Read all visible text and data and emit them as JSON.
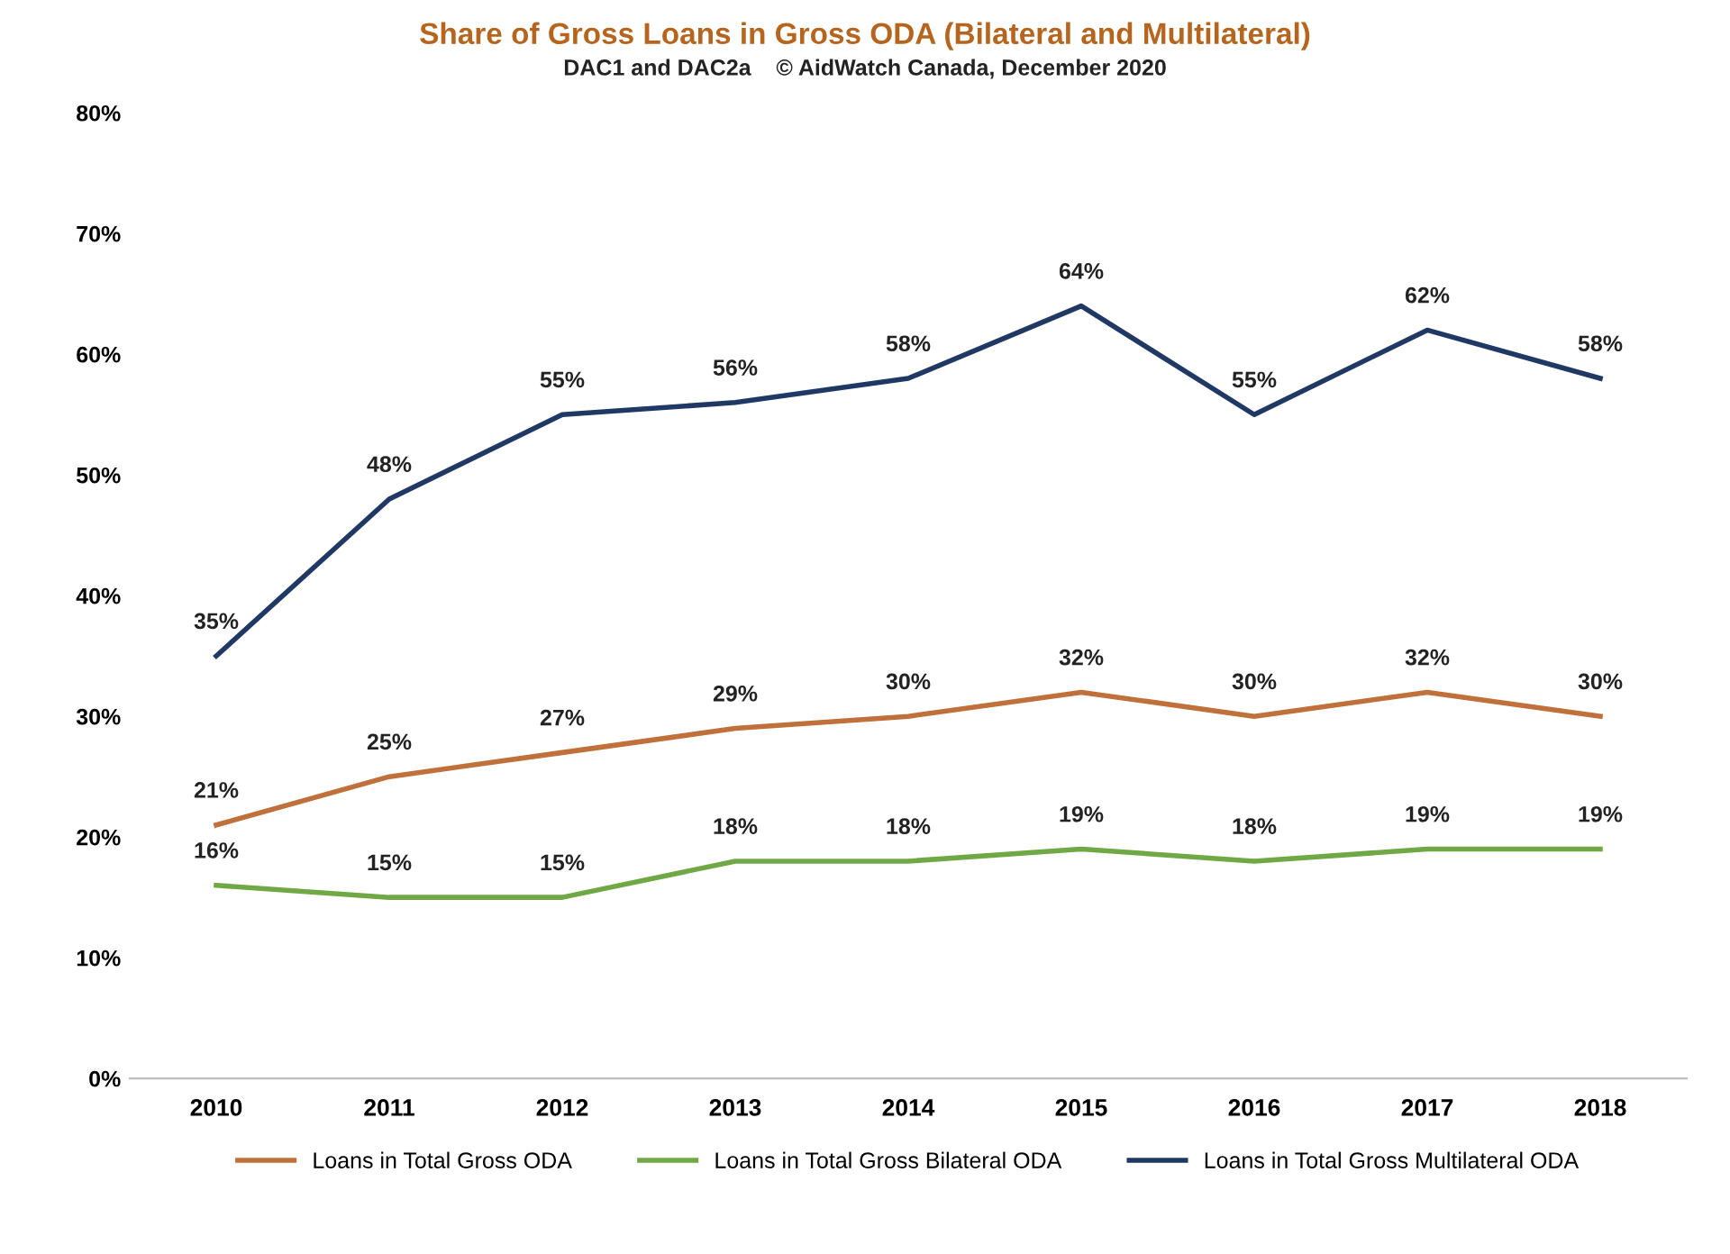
{
  "chart_data": {
    "type": "line",
    "title": "Share of Gross Loans in Gross ODA (Bilateral and Multilateral)",
    "subtitle": "DAC1 and DAC2a    © AidWatch Canada, December 2020",
    "categories": [
      "2010",
      "2011",
      "2012",
      "2013",
      "2014",
      "2015",
      "2016",
      "2017",
      "2018"
    ],
    "series": [
      {
        "name": "Loans in Total Gross ODA",
        "color": "#c0703a",
        "values": [
          21,
          25,
          27,
          29,
          30,
          32,
          30,
          32,
          30
        ],
        "value_labels": [
          "21%",
          "25%",
          "27%",
          "29%",
          "30%",
          "32%",
          "30%",
          "32%",
          "30%"
        ]
      },
      {
        "name": "Loans in Total Gross Bilateral ODA",
        "color": "#70a845",
        "values": [
          16,
          15,
          15,
          18,
          18,
          19,
          18,
          19,
          19
        ],
        "value_labels": [
          "16%",
          "15%",
          "15%",
          "18%",
          "18%",
          "19%",
          "18%",
          "19%",
          "19%"
        ]
      },
      {
        "name": "Loans in Total Gross Multilateral ODA",
        "color": "#1f3864",
        "values": [
          35,
          48,
          55,
          56,
          58,
          64,
          55,
          62,
          58
        ],
        "value_labels": [
          "35%",
          "48%",
          "55%",
          "56%",
          "58%",
          "64%",
          "55%",
          "62%",
          "58%"
        ]
      }
    ],
    "ylim": [
      0,
      80
    ],
    "yticks": [
      {
        "value": 0,
        "label": "0%"
      },
      {
        "value": 10,
        "label": "10%"
      },
      {
        "value": 20,
        "label": "20%"
      },
      {
        "value": 30,
        "label": "30%"
      },
      {
        "value": 40,
        "label": "40%"
      },
      {
        "value": 50,
        "label": "50%"
      },
      {
        "value": 60,
        "label": "60%"
      },
      {
        "value": 70,
        "label": "70%"
      },
      {
        "value": 80,
        "label": "80%"
      }
    ],
    "grid": false,
    "legend": "bottom",
    "marker": "none",
    "line_style": "solid"
  }
}
